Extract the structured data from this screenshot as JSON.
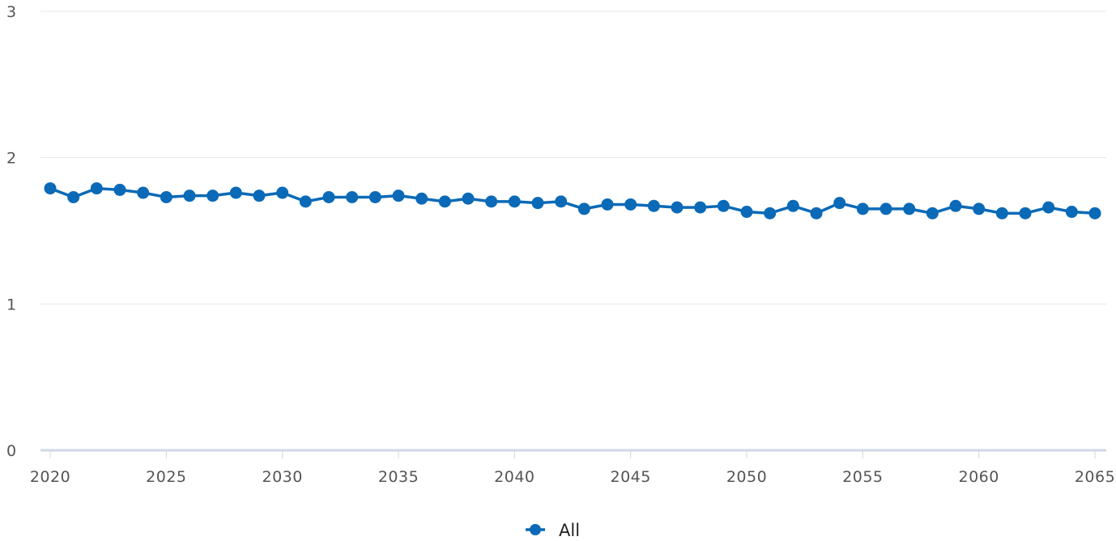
{
  "colors": {
    "series": "#0a6ab7",
    "grid": "#e6e6e6",
    "axis": "#cfd8e6",
    "text": "#555555"
  },
  "chart_data": {
    "type": "line",
    "title": "",
    "xlabel": "",
    "ylabel": "",
    "xlim": [
      2020,
      2065
    ],
    "ylim": [
      0,
      3
    ],
    "grid": true,
    "legend_position": "bottom-center",
    "y_ticks": [
      0,
      1,
      2,
      3
    ],
    "x_ticks": [
      2020,
      2025,
      2030,
      2035,
      2040,
      2045,
      2050,
      2055,
      2060,
      2065
    ],
    "series": [
      {
        "name": "All",
        "color": "#0a6ab7",
        "x": [
          2020,
          2021,
          2022,
          2023,
          2024,
          2025,
          2026,
          2027,
          2028,
          2029,
          2030,
          2031,
          2032,
          2033,
          2034,
          2035,
          2036,
          2037,
          2038,
          2039,
          2040,
          2041,
          2042,
          2043,
          2044,
          2045,
          2046,
          2047,
          2048,
          2049,
          2050,
          2051,
          2052,
          2053,
          2054,
          2055,
          2056,
          2057,
          2058,
          2059,
          2060,
          2061,
          2062,
          2063,
          2064,
          2065
        ],
        "values": [
          1.79,
          1.73,
          1.79,
          1.78,
          1.76,
          1.73,
          1.74,
          1.74,
          1.76,
          1.74,
          1.76,
          1.7,
          1.73,
          1.73,
          1.73,
          1.74,
          1.72,
          1.7,
          1.72,
          1.7,
          1.7,
          1.69,
          1.7,
          1.65,
          1.68,
          1.68,
          1.67,
          1.66,
          1.66,
          1.67,
          1.63,
          1.62,
          1.67,
          1.62,
          1.69,
          1.65,
          1.65,
          1.65,
          1.62,
          1.67,
          1.65,
          1.62,
          1.62,
          1.66,
          1.63,
          1.62
        ]
      }
    ]
  }
}
